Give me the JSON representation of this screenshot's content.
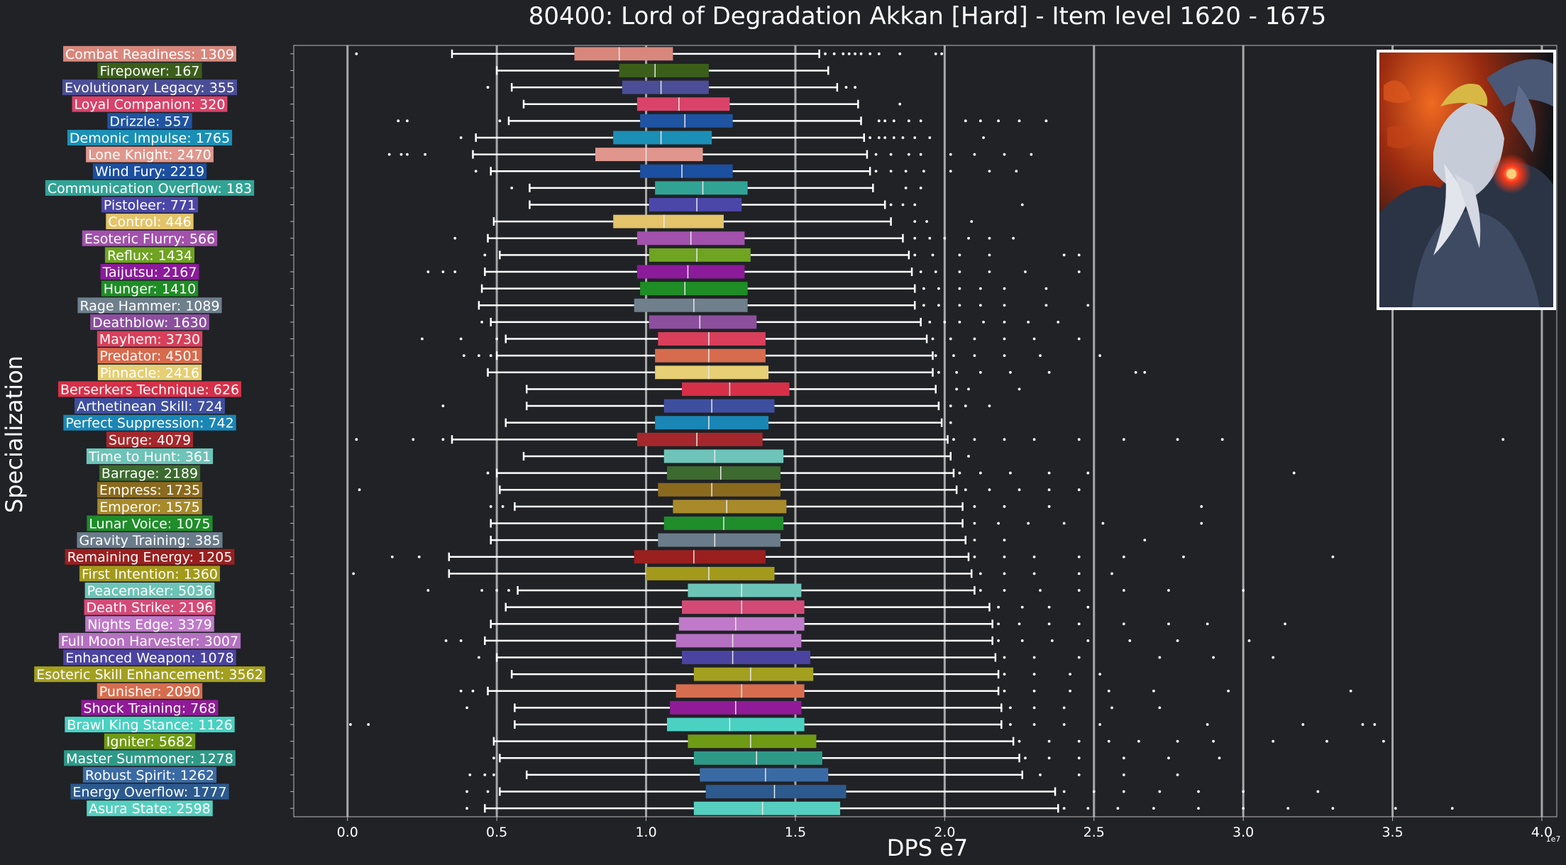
{
  "chart_data": {
    "type": "box",
    "title": "80400: Lord of Degradation Akkan [Hard] - Item level 1620 - 1675",
    "xlabel": "DPS e7",
    "ylabel": "Specialization",
    "x_offset_label": "1e7",
    "xlim": [
      -0.18,
      4.05
    ],
    "xticks": [
      0.0,
      0.5,
      1.0,
      1.5,
      2.0,
      2.5,
      3.0,
      3.5,
      4.0
    ],
    "xtick_labels": [
      "0.0",
      "0.5",
      "1.0",
      "1.5",
      "2.0",
      "2.5",
      "3.0",
      "3.5",
      "4.0"
    ],
    "grid": "vertical",
    "series": [
      {
        "name": "Combat Readiness: 1309",
        "color": "#d9877c",
        "whislo": 0.35,
        "q1": 0.76,
        "median": 0.91,
        "q3": 1.09,
        "whishi": 1.58,
        "outliers": [
          0.03,
          1.6,
          1.63,
          1.66,
          1.68,
          1.7,
          1.72,
          1.75,
          1.78,
          1.85,
          1.97,
          1.99
        ]
      },
      {
        "name": "Firepower: 167",
        "color": "#3b5f1b",
        "whislo": 0.5,
        "q1": 0.91,
        "median": 1.03,
        "q3": 1.21,
        "whishi": 1.61,
        "outliers": []
      },
      {
        "name": "Evolutionary Legacy: 355",
        "color": "#4b4e96",
        "whislo": 0.55,
        "q1": 0.92,
        "median": 1.05,
        "q3": 1.21,
        "whishi": 1.64,
        "outliers": [
          0.47,
          1.67,
          1.7
        ]
      },
      {
        "name": "Loyal Companion: 320",
        "color": "#d9436a",
        "whislo": 0.59,
        "q1": 0.97,
        "median": 1.11,
        "q3": 1.28,
        "whishi": 1.71,
        "outliers": [
          1.85
        ]
      },
      {
        "name": "Drizzle: 557",
        "color": "#1f54a3",
        "whislo": 0.54,
        "q1": 0.98,
        "median": 1.13,
        "q3": 1.29,
        "whishi": 1.72,
        "outliers": [
          0.17,
          0.2,
          0.51,
          1.78,
          1.8,
          1.83,
          1.88,
          1.92,
          2.07,
          2.12,
          2.18,
          2.25,
          2.34
        ]
      },
      {
        "name": "Demonic Impulse: 1765",
        "color": "#1b8fb5",
        "whislo": 0.43,
        "q1": 0.89,
        "median": 1.05,
        "q3": 1.22,
        "whishi": 1.73,
        "outliers": [
          0.38,
          1.75,
          1.78,
          1.8,
          1.83,
          1.86,
          1.9,
          1.95,
          2.13
        ]
      },
      {
        "name": "Lone Knight: 2470",
        "color": "#e0968c",
        "whislo": 0.42,
        "q1": 0.83,
        "median": 1.0,
        "q3": 1.19,
        "whishi": 1.74,
        "outliers": [
          0.14,
          0.18,
          0.2,
          0.26,
          1.77,
          1.82,
          1.88,
          1.92,
          2.02,
          2.1,
          2.2,
          2.29
        ]
      },
      {
        "name": "Wind Fury: 2219",
        "color": "#1b4fa0",
        "whislo": 0.48,
        "q1": 0.98,
        "median": 1.12,
        "q3": 1.29,
        "whishi": 1.75,
        "outliers": [
          0.43,
          1.77,
          1.82,
          1.87,
          1.93,
          2.02,
          2.15,
          2.24
        ]
      },
      {
        "name": "Communication Overflow: 183",
        "color": "#31a395",
        "whislo": 0.61,
        "q1": 1.03,
        "median": 1.19,
        "q3": 1.34,
        "whishi": 1.76,
        "outliers": [
          0.55,
          1.87,
          1.92
        ]
      },
      {
        "name": "Pistoleer: 771",
        "color": "#4b47a8",
        "whislo": 0.61,
        "q1": 1.01,
        "median": 1.17,
        "q3": 1.32,
        "whishi": 1.8,
        "outliers": [
          1.82,
          1.86,
          1.9,
          2.26
        ]
      },
      {
        "name": "Control: 446",
        "color": "#e3c46a",
        "whislo": 0.49,
        "q1": 0.89,
        "median": 1.06,
        "q3": 1.26,
        "whishi": 1.82,
        "outliers": [
          1.9,
          1.94,
          2.09
        ]
      },
      {
        "name": "Esoteric Flurry: 566",
        "color": "#a251ac",
        "whislo": 0.47,
        "q1": 0.97,
        "median": 1.15,
        "q3": 1.33,
        "whishi": 1.86,
        "outliers": [
          0.36,
          1.9,
          1.95,
          2.0,
          2.08,
          2.15,
          2.23
        ]
      },
      {
        "name": "Reflux: 1434",
        "color": "#6fa322",
        "whislo": 0.51,
        "q1": 1.01,
        "median": 1.17,
        "q3": 1.35,
        "whishi": 1.88,
        "outliers": [
          0.46,
          1.9,
          1.96,
          2.05,
          2.15,
          2.4,
          2.45
        ]
      },
      {
        "name": "Taijutsu: 2167",
        "color": "#8b1b9a",
        "whislo": 0.46,
        "q1": 0.97,
        "median": 1.14,
        "q3": 1.33,
        "whishi": 1.89,
        "outliers": [
          0.27,
          0.32,
          0.36,
          1.92,
          1.97,
          2.05,
          2.15,
          2.27,
          2.45
        ]
      },
      {
        "name": "Hunger: 1410",
        "color": "#1f8d25",
        "whislo": 0.45,
        "q1": 0.98,
        "median": 1.13,
        "q3": 1.34,
        "whishi": 1.9,
        "outliers": [
          1.93,
          1.98,
          2.05,
          2.12,
          2.2,
          2.34
        ]
      },
      {
        "name": "Rage Hammer: 1089",
        "color": "#6f7f8c",
        "whislo": 0.44,
        "q1": 0.96,
        "median": 1.16,
        "q3": 1.34,
        "whishi": 1.9,
        "outliers": [
          1.93,
          1.98,
          2.05,
          2.12,
          2.2,
          2.34,
          2.48
        ]
      },
      {
        "name": "Deathblow: 1630",
        "color": "#8c4f9e",
        "whislo": 0.48,
        "q1": 1.01,
        "median": 1.18,
        "q3": 1.37,
        "whishi": 1.92,
        "outliers": [
          0.45,
          1.95,
          2.0,
          2.05,
          2.13,
          2.2,
          2.28,
          2.38
        ]
      },
      {
        "name": "Mayhem: 3730",
        "color": "#d93f5a",
        "whislo": 0.53,
        "q1": 1.04,
        "median": 1.21,
        "q3": 1.4,
        "whishi": 1.94,
        "outliers": [
          0.25,
          0.38,
          0.5,
          1.96,
          2.02,
          2.1,
          2.2,
          2.3,
          2.45
        ]
      },
      {
        "name": "Predator: 4501",
        "color": "#d76b4e",
        "whislo": 0.5,
        "q1": 1.03,
        "median": 1.21,
        "q3": 1.4,
        "whishi": 1.96,
        "outliers": [
          0.39,
          0.44,
          0.48,
          1.97,
          2.03,
          2.1,
          2.2,
          2.32,
          2.52
        ]
      },
      {
        "name": "Pinnacle: 2416",
        "color": "#e6cf74",
        "whislo": 0.47,
        "q1": 1.03,
        "median": 1.21,
        "q3": 1.41,
        "whishi": 1.96,
        "outliers": [
          1.98,
          2.04,
          2.12,
          2.22,
          2.35,
          2.64,
          2.67
        ]
      },
      {
        "name": "Berserkers Technique: 626",
        "color": "#d63048",
        "whislo": 0.6,
        "q1": 1.12,
        "median": 1.28,
        "q3": 1.48,
        "whishi": 1.97,
        "outliers": [
          2.04,
          2.08,
          2.25
        ]
      },
      {
        "name": "Arthetinean Skill: 724",
        "color": "#3f4fa0",
        "whislo": 0.6,
        "q1": 1.06,
        "median": 1.22,
        "q3": 1.43,
        "whishi": 1.98,
        "outliers": [
          0.32,
          2.02,
          2.07,
          2.15
        ]
      },
      {
        "name": "Perfect Suppression: 742",
        "color": "#1a86b5",
        "whislo": 0.53,
        "q1": 1.03,
        "median": 1.21,
        "q3": 1.41,
        "whishi": 1.99,
        "outliers": [
          2.02
        ]
      },
      {
        "name": "Surge: 4079",
        "color": "#a4282b",
        "whislo": 0.35,
        "q1": 0.97,
        "median": 1.17,
        "q3": 1.39,
        "whishi": 2.01,
        "outliers": [
          0.03,
          0.22,
          0.32,
          2.03,
          2.1,
          2.2,
          2.3,
          2.45,
          2.6,
          2.78,
          2.93,
          3.87
        ]
      },
      {
        "name": "Time to Hunt: 361",
        "color": "#6ec4b8",
        "whislo": 0.59,
        "q1": 1.06,
        "median": 1.23,
        "q3": 1.46,
        "whishi": 2.02,
        "outliers": [
          2.08
        ]
      },
      {
        "name": "Barrage: 2189",
        "color": "#3c6a2f",
        "whislo": 0.5,
        "q1": 1.07,
        "median": 1.25,
        "q3": 1.45,
        "whishi": 2.03,
        "outliers": [
          0.47,
          2.05,
          2.12,
          2.22,
          2.35,
          2.48,
          3.17
        ]
      },
      {
        "name": "Empress: 1735",
        "color": "#8a6a1f",
        "whislo": 0.51,
        "q1": 1.04,
        "median": 1.22,
        "q3": 1.45,
        "whishi": 2.04,
        "outliers": [
          0.04,
          2.07,
          2.15,
          2.25,
          2.35,
          2.45
        ]
      },
      {
        "name": "Emperor: 1575",
        "color": "#a88a2a",
        "whislo": 0.56,
        "q1": 1.09,
        "median": 1.27,
        "q3": 1.47,
        "whishi": 2.06,
        "outliers": [
          0.48,
          0.52,
          2.1,
          2.2,
          2.35,
          2.86
        ]
      },
      {
        "name": "Lunar Voice: 1075",
        "color": "#1f8d2a",
        "whislo": 0.48,
        "q1": 1.06,
        "median": 1.26,
        "q3": 1.46,
        "whishi": 2.06,
        "outliers": [
          2.1,
          2.18,
          2.28,
          2.4,
          2.53,
          2.86
        ]
      },
      {
        "name": "Gravity Training: 385",
        "color": "#6a7c8a",
        "whislo": 0.48,
        "q1": 1.04,
        "median": 1.23,
        "q3": 1.45,
        "whishi": 2.07,
        "outliers": [
          2.1,
          2.2,
          2.67
        ]
      },
      {
        "name": "Remaining Energy: 1205",
        "color": "#9a1f1f",
        "whislo": 0.34,
        "q1": 0.96,
        "median": 1.16,
        "q3": 1.4,
        "whishi": 2.08,
        "outliers": [
          0.15,
          0.24,
          2.1,
          2.2,
          2.3,
          2.45,
          2.6,
          2.8,
          3.3
        ]
      },
      {
        "name": "First Intention: 1360",
        "color": "#a39a1c",
        "whislo": 0.34,
        "q1": 1.0,
        "median": 1.21,
        "q3": 1.43,
        "whishi": 2.09,
        "outliers": [
          0.02,
          2.12,
          2.2,
          2.3,
          2.45,
          2.56
        ]
      },
      {
        "name": "Peacemaker: 5036",
        "color": "#6cc4b7",
        "whislo": 0.57,
        "q1": 1.14,
        "median": 1.32,
        "q3": 1.52,
        "whishi": 2.1,
        "outliers": [
          0.27,
          0.45,
          0.5,
          0.54,
          2.12,
          2.2,
          2.32,
          2.45,
          2.6,
          2.75,
          3.0
        ]
      },
      {
        "name": "Death Strike: 2196",
        "color": "#d44a76",
        "whislo": 0.53,
        "q1": 1.12,
        "median": 1.32,
        "q3": 1.53,
        "whishi": 2.15,
        "outliers": [
          2.18,
          2.26,
          2.35,
          2.48
        ]
      },
      {
        "name": "Nights Edge: 3379",
        "color": "#c07ac9",
        "whislo": 0.48,
        "q1": 1.11,
        "median": 1.3,
        "q3": 1.53,
        "whishi": 2.16,
        "outliers": [
          2.18,
          2.25,
          2.35,
          2.45,
          2.6,
          2.75,
          2.88,
          3.14
        ]
      },
      {
        "name": "Full Moon Harvester: 3007",
        "color": "#b570c2",
        "whislo": 0.46,
        "q1": 1.1,
        "median": 1.29,
        "q3": 1.52,
        "whishi": 2.16,
        "outliers": [
          0.33,
          0.38,
          2.18,
          2.26,
          2.36,
          2.48,
          2.62,
          2.78,
          3.02
        ]
      },
      {
        "name": "Enhanced Weapon: 1078",
        "color": "#4a43a0",
        "whislo": 0.5,
        "q1": 1.12,
        "median": 1.29,
        "q3": 1.55,
        "whishi": 2.17,
        "outliers": [
          0.44,
          2.2,
          2.3,
          2.45,
          2.72,
          2.9,
          3.1
        ]
      },
      {
        "name": "Esoteric Skill Enhancement: 3562",
        "color": "#a3a020",
        "whislo": 0.55,
        "q1": 1.16,
        "median": 1.35,
        "q3": 1.56,
        "whishi": 2.18,
        "outliers": [
          2.2,
          2.3,
          2.42,
          2.52
        ]
      },
      {
        "name": "Punisher: 2090",
        "color": "#d76d4f",
        "whislo": 0.47,
        "q1": 1.1,
        "median": 1.32,
        "q3": 1.53,
        "whishi": 2.18,
        "outliers": [
          0.38,
          0.42,
          2.2,
          2.3,
          2.42,
          2.55,
          2.7,
          2.95,
          3.36
        ]
      },
      {
        "name": "Shock Training: 768",
        "color": "#8f1b96",
        "whislo": 0.56,
        "q1": 1.08,
        "median": 1.3,
        "q3": 1.52,
        "whishi": 2.19,
        "outliers": [
          0.4,
          2.22,
          2.3,
          2.4,
          2.56,
          2.72
        ]
      },
      {
        "name": "Brawl King Stance: 1126",
        "color": "#4ad1c2",
        "whislo": 0.56,
        "q1": 1.07,
        "median": 1.28,
        "q3": 1.53,
        "whishi": 2.19,
        "outliers": [
          0.01,
          0.07,
          2.22,
          2.3,
          2.4,
          2.52,
          2.88,
          3.2,
          3.4,
          3.44
        ]
      },
      {
        "name": "Igniter: 5682",
        "color": "#6f9a14",
        "whislo": 0.49,
        "q1": 1.14,
        "median": 1.35,
        "q3": 1.57,
        "whishi": 2.23,
        "outliers": [
          2.25,
          2.35,
          2.45,
          2.55,
          2.65,
          2.78,
          2.9,
          3.1,
          3.28,
          3.47
        ]
      },
      {
        "name": "Master Summoner: 1278",
        "color": "#2f9988",
        "whislo": 0.51,
        "q1": 1.16,
        "median": 1.37,
        "q3": 1.59,
        "whishi": 2.25,
        "outliers": [
          0.49,
          2.27,
          2.35,
          2.45,
          2.6,
          2.75,
          2.92
        ]
      },
      {
        "name": "Robust Spirit: 1262",
        "color": "#3a6aa4",
        "whislo": 0.6,
        "q1": 1.18,
        "median": 1.4,
        "q3": 1.61,
        "whishi": 2.26,
        "outliers": [
          0.41,
          0.46,
          0.49,
          2.32,
          2.45,
          2.6,
          2.78
        ]
      },
      {
        "name": "Energy Overflow: 1777",
        "color": "#2c5a8f",
        "whislo": 0.51,
        "q1": 1.2,
        "median": 1.43,
        "q3": 1.67,
        "whishi": 2.37,
        "outliers": [
          0.4,
          0.47,
          2.4,
          2.5,
          2.6,
          2.72,
          2.85,
          3.0,
          3.25
        ]
      },
      {
        "name": "Asura State: 2598",
        "color": "#56cfc0",
        "whislo": 0.46,
        "q1": 1.16,
        "median": 1.39,
        "q3": 1.65,
        "whishi": 2.38,
        "outliers": [
          0.4,
          2.4,
          2.48,
          2.58,
          2.7,
          2.85,
          3.0,
          3.15,
          3.3,
          3.51,
          3.7
        ]
      }
    ]
  },
  "colors": {
    "background": "#202226",
    "text": "#ffffff",
    "grid": "#a8a8a8",
    "axis": "#bbbbbb",
    "whisker": "#ffffff"
  },
  "boss_image": {
    "icon": "demon-boss-portrait-icon",
    "palette": [
      "#101318",
      "#d8551e",
      "#5a6a86",
      "#c9ced9"
    ]
  }
}
